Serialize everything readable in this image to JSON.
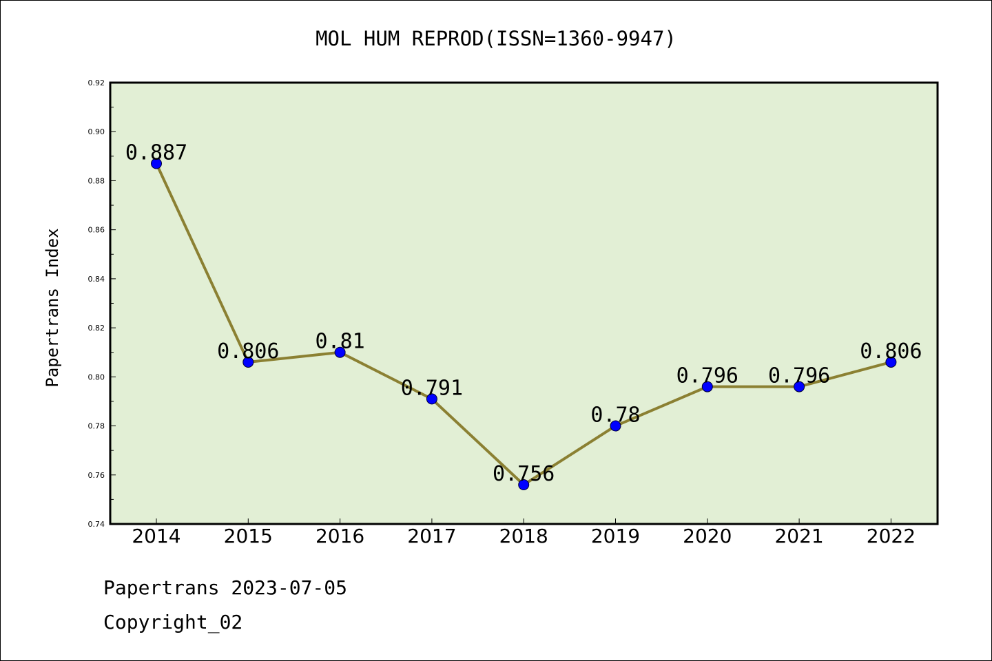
{
  "chart_data": {
    "type": "line",
    "title": "MOL HUM REPROD(ISSN=1360-9947)",
    "xlabel": "",
    "ylabel": "Papertrans Index",
    "categories": [
      "2014",
      "2015",
      "2016",
      "2017",
      "2018",
      "2019",
      "2020",
      "2021",
      "2022"
    ],
    "values": [
      0.887,
      0.806,
      0.81,
      0.791,
      0.756,
      0.78,
      0.796,
      0.796,
      0.806
    ],
    "data_labels": [
      "0.887",
      "0.806",
      "0.81",
      "0.791",
      "0.756",
      "0.78",
      "0.796",
      "0.796",
      "0.806"
    ],
    "ylim": [
      0.74,
      0.92
    ],
    "yticks": [
      "0.74",
      "0.76",
      "0.78",
      "0.80",
      "0.82",
      "0.84",
      "0.86",
      "0.88",
      "0.90",
      "0.92"
    ],
    "grid": false,
    "legend": "none",
    "colors": {
      "plot_background": "#e2efd5",
      "line": "#8b8032",
      "marker": "#0000ff",
      "marker_edge": "#000033"
    }
  },
  "footer": {
    "line1": "Papertrans 2023-07-05",
    "line2": "Copyright_02"
  }
}
